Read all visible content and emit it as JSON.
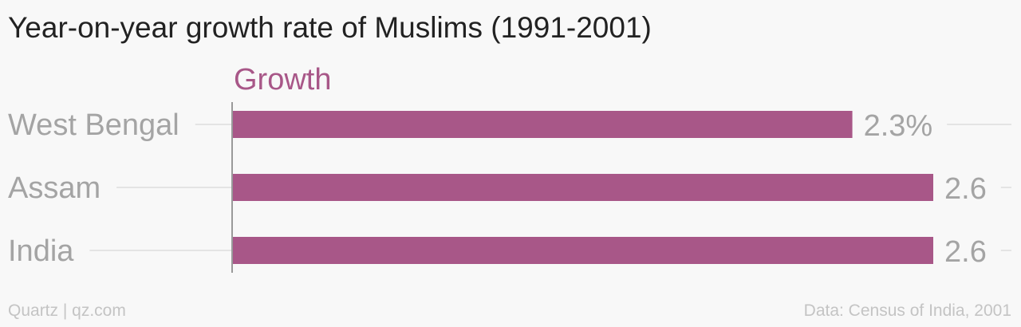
{
  "title": "Year-on-year growth rate of Muslims (1991-2001)",
  "footer": {
    "source_left": "Quartz | qz.com",
    "source_right": "Data: Census of India, 2001"
  },
  "colors": {
    "bar": "#a85788",
    "axis": "#9a9a9a",
    "gridline": "#e4e4e4"
  },
  "chart_data": {
    "type": "bar",
    "orientation": "horizontal",
    "title": "Year-on-year growth rate of Muslims (1991-2001)",
    "categories": [
      "West Bengal",
      "Assam",
      "India"
    ],
    "series": [
      {
        "name": "Growth",
        "values": [
          2.3,
          2.6,
          2.6
        ],
        "labels": [
          "2.3%",
          "2.6",
          "2.6"
        ]
      }
    ],
    "xlim": [
      0,
      2.6
    ],
    "grid": false,
    "legend": "top-left"
  }
}
